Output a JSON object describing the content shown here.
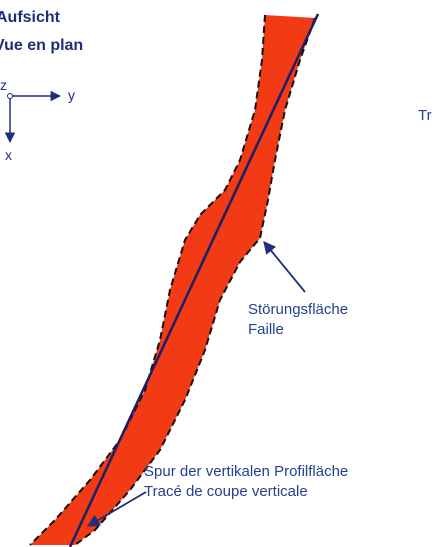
{
  "header": {
    "title_de": "Aufsicht",
    "title_fr": "Vue en plan"
  },
  "axes": {
    "z": "z",
    "y": "y",
    "x": "x"
  },
  "side_label": "Tr",
  "labels": {
    "fault_de": "Störungsfläche",
    "fault_fr": "Faille",
    "trace_de": "Spur der vertikalen Profilfläche",
    "trace_fr": "Tracé de coupe verticale"
  }
}
